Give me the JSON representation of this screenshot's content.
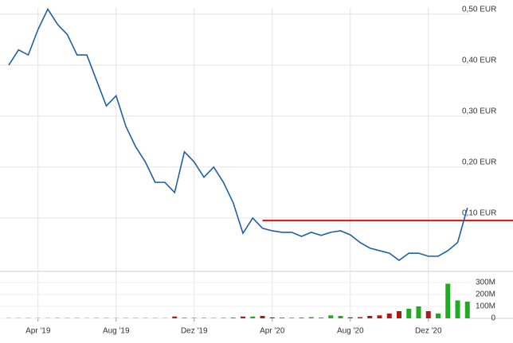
{
  "chart_data": {
    "type": "stock",
    "categories": [
      null,
      null,
      null,
      "Apr '19",
      null,
      null,
      null,
      null,
      null,
      null,
      null,
      "Aug '19",
      null,
      null,
      null,
      null,
      null,
      null,
      null,
      "Dez '19",
      null,
      null,
      null,
      null,
      null,
      null,
      null,
      "Apr '20",
      null,
      null,
      null,
      null,
      null,
      null,
      null,
      "Aug '20",
      null,
      null,
      null,
      null,
      null,
      null,
      null,
      "Dez '20",
      null,
      null,
      null,
      null
    ],
    "series": [
      {
        "color": "#1f5fa6",
        "values": [
          0.4,
          0.43,
          0.42,
          0.47,
          0.51,
          0.48,
          0.46,
          0.42,
          0.42,
          0.37,
          0.32,
          0.34,
          0.28,
          0.24,
          0.21,
          0.17,
          0.17,
          0.15,
          0.23,
          0.21,
          0.18,
          0.2,
          0.17,
          0.13,
          0.07,
          0.1,
          0.08,
          0.075,
          0.072,
          0.072,
          0.064,
          0.072,
          0.066,
          0.072,
          0.075,
          0.067,
          0.052,
          0.041,
          0.036,
          0.031,
          0.017,
          0.031,
          0.031,
          0.025,
          0.025,
          0.036,
          0.052,
          0.12
        ]
      }
    ],
    "ylim": [
      0,
      0.52
    ],
    "yticks": [
      {
        "value": 0.1,
        "label": "0,10 EUR"
      },
      {
        "value": 0.2,
        "label": "0,20 EUR"
      },
      {
        "value": 0.3,
        "label": "0,30 EUR"
      },
      {
        "value": 0.4,
        "label": "0,40 EUR"
      },
      {
        "value": 0.5,
        "label": "0,50 EUR"
      }
    ],
    "reference_line": {
      "value": 0.095,
      "color": "#e01010"
    },
    "volume": {
      "values": [
        2000000,
        2000000,
        2000000,
        2000000,
        2000000,
        2000000,
        2000000,
        2000000,
        2000000,
        2000000,
        2000000,
        2000000,
        2000000,
        2000000,
        2000000,
        2000000,
        2000000,
        15000000,
        5000000,
        3000000,
        3000000,
        3000000,
        3000000,
        5000000,
        15000000,
        15000000,
        20000000,
        8000000,
        5000000,
        5000000,
        5000000,
        10000000,
        5000000,
        25000000,
        20000000,
        8000000,
        10000000,
        20000000,
        25000000,
        40000000,
        60000000,
        80000000,
        100000000,
        60000000,
        40000000,
        290000000,
        150000000,
        140000000
      ],
      "up_color": "#22aa22",
      "down_color": "#b01818",
      "ylim": [
        0,
        320000000
      ],
      "yticks": [
        0,
        {
          "value": 100000000,
          "label": "100M"
        },
        {
          "value": 200000000,
          "label": "200M"
        },
        {
          "value": 300000000,
          "label": "300M"
        }
      ]
    },
    "grid": true
  }
}
